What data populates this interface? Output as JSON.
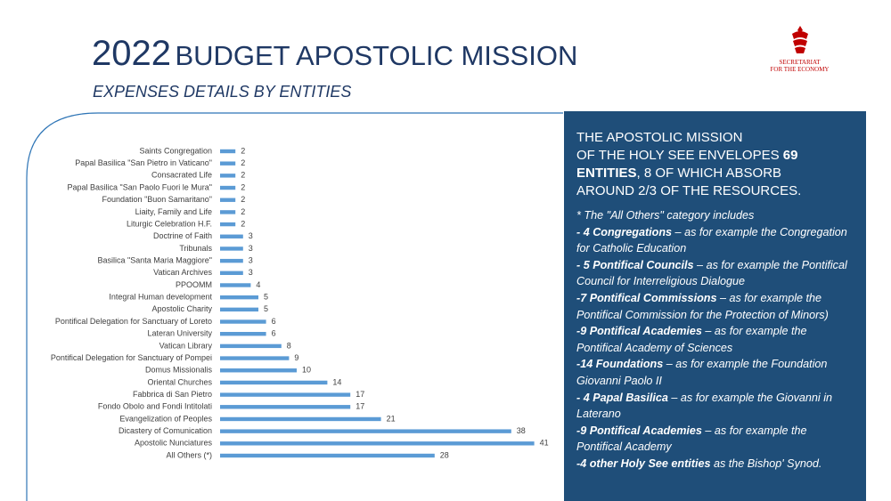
{
  "header": {
    "year": "2022",
    "title": "BUDGET APOSTOLIC MISSION",
    "subtitle": "EXPENSES DETAILS BY ENTITIES"
  },
  "logo": {
    "line1": "SECRETARIAT",
    "line2": "FOR THE ECONOMY"
  },
  "chart_data": {
    "type": "bar",
    "orientation": "horizontal",
    "color": "#5b9bd5",
    "categories": [
      "Saints Congregation",
      "Papal Basilica \"San Pietro in Vaticano\"",
      "Consacrated Life",
      "Papal Basilica \"San Paolo Fuori le Mura\"",
      "Foundation \"Buon Samaritano\"",
      "Liaity, Family and Life",
      "Liturgic Celebration H.F.",
      "Doctrine of Faith",
      "Tribunals",
      "Basilica \"Santa Maria Maggiore\"",
      "Vatican Archives",
      "PPOOMM",
      "Integral Human development",
      "Apostolic Charity",
      "Pontifical Delegation for Sanctuary of Loreto",
      "Lateran University",
      "Vatican Library",
      "Pontifical Delegation for Sanctuary of Pompei",
      "Domus Missionalis",
      "Oriental Churches",
      "Fabbrica di San Pietro",
      "Fondo Obolo and Fondi Intitolati",
      "Evangelization of Peoples",
      "Dicastery of Comunication",
      "Apostolic Nunciatures",
      "All Others (*)"
    ],
    "values": [
      2,
      2,
      2,
      2,
      2,
      2,
      2,
      3,
      3,
      3,
      3,
      4,
      5,
      5,
      6,
      6,
      8,
      9,
      10,
      14,
      17,
      17,
      21,
      38,
      41,
      28
    ]
  },
  "box": {
    "heading": {
      "a": "THE APOSTOLIC MISSION",
      "b": "OF THE HOLY SEE ENVELOPES ",
      "c": "69",
      "d": "ENTITIES",
      "e": ", 8 OF WHICH  ABSORB",
      "f": "AROUND 2/3 OF THE RESOURCES."
    },
    "intro": "* The \"All Others\" category includes",
    "items": [
      {
        "bold": "- 4 Congregations",
        "rest": " – as for example the Congregation for Catholic Education"
      },
      {
        "bold": "- 5 Pontifical Councils",
        "rest": " – as for example the Pontifical Council for Interreligious  Dialogue"
      },
      {
        "bold": "-7 Pontifical Commissions",
        "rest": " – as for example the Pontifical Commission for the Protection of Minors)"
      },
      {
        "bold": "-9 Pontifical Academies",
        "rest": " – as for  example the Pontifical Academy of Sciences"
      },
      {
        "bold": "-14 Foundations",
        "rest": " – as for example the Foundation Giovanni Paolo II"
      },
      {
        "bold": "- 4 Papal Basilica",
        "rest": " – as for  example the Giovanni in Laterano"
      },
      {
        "bold": "-9 Pontifical Academies",
        "rest": " – as for  example the Pontifical Academy"
      },
      {
        "bold": "-4 other Holy See entities",
        "rest": " as the Bishop' Synod."
      }
    ]
  }
}
